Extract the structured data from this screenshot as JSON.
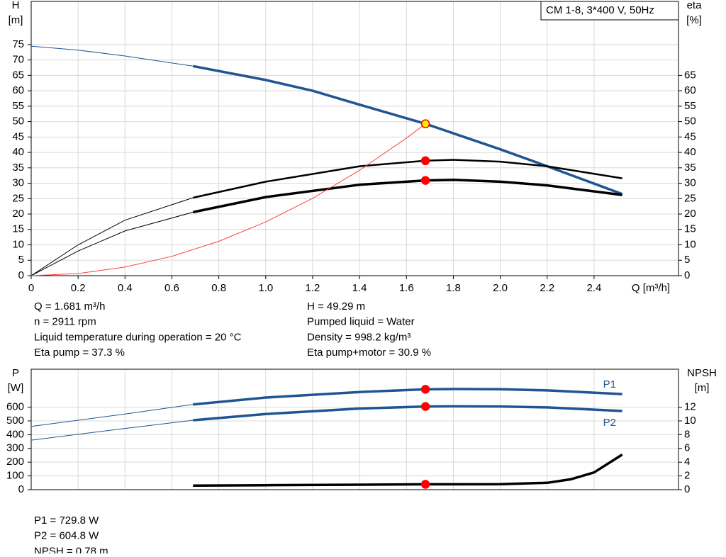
{
  "chart_data": [
    {
      "type": "line",
      "title": "CM 1-8, 3*400 V, 50Hz",
      "ylabel": [
        "H",
        "[m]"
      ],
      "y2label": [
        "eta",
        "[%]"
      ],
      "xlabel": "Q [m³/h]",
      "xlim": [
        0,
        2.76
      ],
      "xticks": [
        0,
        0.2,
        0.4,
        0.6,
        0.8,
        {
          "value": 1,
          "label": "1.0"
        },
        1.2,
        1.4,
        1.6,
        1.8,
        {
          "value": 2,
          "label": "2.0"
        },
        2.2,
        2.4
      ],
      "ylim": [
        0,
        89
      ],
      "yticks": [
        0,
        5,
        10,
        15,
        20,
        25,
        30,
        35,
        40,
        45,
        50,
        55,
        60,
        65,
        70,
        75
      ],
      "y2lim": [
        0,
        89
      ],
      "y2ticks": [
        0,
        5,
        10,
        15,
        20,
        25,
        30,
        35,
        40,
        45,
        50,
        55,
        60,
        65
      ],
      "grid": true,
      "operating_x": 1.681,
      "bold_range": [
        0.69,
        2.52
      ],
      "series": [
        {
          "color": "#1f5591",
          "x": [
            0,
            0.2,
            0.4,
            0.69,
            1.0,
            1.2,
            1.4,
            1.681,
            2.0,
            2.2,
            2.52
          ],
          "values": [
            74.5,
            73.2,
            71.3,
            68,
            63.5,
            60,
            55.5,
            49.29,
            41,
            35.5,
            26.5
          ],
          "marker": "#ffee00"
        },
        {
          "color": "#000000",
          "axis": "y2",
          "x": [
            0,
            0.2,
            0.4,
            0.69,
            1.0,
            1.4,
            1.681,
            1.8,
            2.0,
            2.2,
            2.52
          ],
          "values": [
            0,
            10,
            18,
            25.3,
            30.5,
            35.5,
            37.3,
            37.6,
            37,
            35.5,
            31.6
          ],
          "marker": "#ff0000"
        },
        {
          "color": "#000000",
          "axis": "y2",
          "x": [
            0,
            0.2,
            0.4,
            0.69,
            1.0,
            1.4,
            1.681,
            1.8,
            2.0,
            2.2,
            2.52
          ],
          "values": [
            0,
            8,
            14.5,
            20.6,
            25.5,
            29.5,
            30.9,
            31.1,
            30.5,
            29.3,
            26.2
          ],
          "marker": "#ff0000"
        },
        {
          "color": "#ff4040",
          "thin": true,
          "x": [
            0,
            0.2,
            0.4,
            0.6,
            0.8,
            1.0,
            1.2,
            1.4,
            1.6,
            1.681
          ],
          "values": [
            0,
            0.7,
            2.79,
            6.28,
            11.16,
            17.44,
            25.12,
            34.19,
            44.66,
            49.29
          ]
        }
      ],
      "notes": [
        "Q = 1.681 m³/h",
        "n = 2911 rpm",
        "Liquid temperature during operation = 20 °C",
        "Eta pump = 37.3 %",
        "H = 49.29 m",
        "Pumped liquid = Water",
        "Density = 998.2 kg/m³",
        "Eta pump+motor = 30.9 %"
      ]
    },
    {
      "type": "line",
      "ylabel": [
        "P",
        "[W]"
      ],
      "y2label": [
        "NPSH",
        "[m]"
      ],
      "xlim": [
        0,
        2.76
      ],
      "xgrid": [
        0,
        0.2,
        0.4,
        0.6,
        0.8,
        1,
        1.2,
        1.4,
        1.6,
        1.8,
        2,
        2.2,
        2.4
      ],
      "ylim": [
        0,
        876
      ],
      "yticks": [
        0,
        100,
        200,
        300,
        400,
        500,
        600
      ],
      "y2lim": [
        0,
        17.52
      ],
      "y2ticks": [
        0,
        2,
        4,
        6,
        8,
        10,
        12
      ],
      "grid": true,
      "operating_x": 1.681,
      "bold_range": [
        0.69,
        2.52
      ],
      "series": [
        {
          "name": "P1",
          "color": "#1f5591",
          "x": [
            0,
            0.4,
            0.69,
            1.0,
            1.4,
            1.681,
            1.8,
            2.0,
            2.2,
            2.52
          ],
          "values": [
            460,
            550,
            620,
            670,
            710,
            729.8,
            732,
            730,
            722,
            695
          ],
          "marker": "#ff0000"
        },
        {
          "name": "P2",
          "color": "#1f5591",
          "x": [
            0,
            0.4,
            0.69,
            1.0,
            1.4,
            1.681,
            1.8,
            2.0,
            2.2,
            2.52
          ],
          "values": [
            360,
            445,
            505,
            550,
            590,
            604.8,
            606,
            605,
            598,
            572
          ],
          "marker": "#ff0000"
        },
        {
          "color": "#000000",
          "axis": "y2",
          "x": [
            0.69,
            1.0,
            1.4,
            1.681,
            2.0,
            2.2,
            2.3,
            2.4,
            2.52
          ],
          "values": [
            0.6,
            0.65,
            0.72,
            0.78,
            0.8,
            1.0,
            1.5,
            2.5,
            5.1
          ],
          "marker": "#ff0000"
        }
      ],
      "notes": [
        "P1 = 729.8 W",
        "P2 = 604.8 W",
        "NPSH = 0.78 m"
      ]
    }
  ]
}
